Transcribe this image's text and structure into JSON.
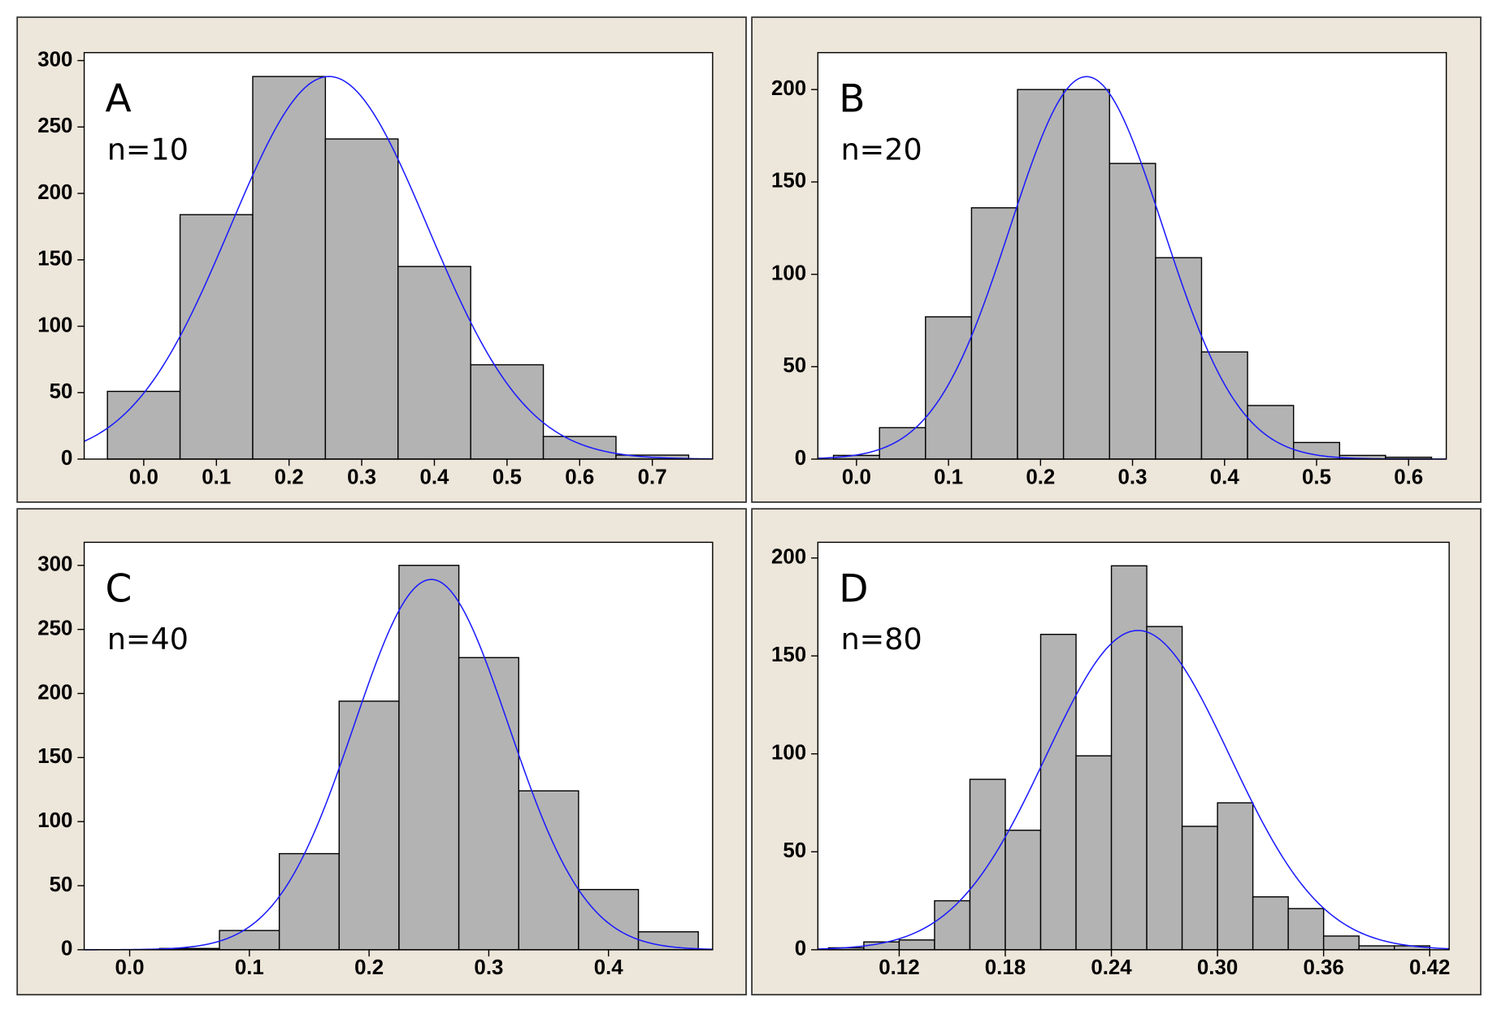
{
  "chart_data": [
    {
      "type": "histogram",
      "annotations": [
        "A",
        "n=10"
      ],
      "bins": [
        -0.05,
        0.05,
        0.15,
        0.25,
        0.35,
        0.45,
        0.55,
        0.65,
        0.75
      ],
      "counts": [
        51,
        184,
        288,
        241,
        145,
        71,
        17,
        3
      ],
      "color": "#b3b3b3",
      "fit": {
        "mean": 0.255,
        "sd": 0.136,
        "peak": 288,
        "color": "#1a1aff"
      },
      "xlim": [
        -0.082,
        0.783
      ],
      "ylim": [
        0,
        306
      ],
      "xticks": [
        {
          "value": 0,
          "label": "0.0"
        },
        0.1,
        0.2,
        0.3,
        0.4,
        0.5,
        0.6,
        0.7
      ],
      "yticks": [
        0,
        50,
        100,
        150,
        200,
        250,
        300
      ]
    },
    {
      "type": "histogram",
      "annotations": [
        "B",
        "n=20"
      ],
      "bins": [
        -0.025,
        0.025,
        0.075,
        0.125,
        0.175,
        0.225,
        0.275,
        0.325,
        0.375,
        0.425,
        0.475,
        0.525,
        0.575,
        0.625
      ],
      "counts": [
        2,
        17,
        77,
        136,
        200,
        200,
        160,
        109,
        58,
        29,
        9,
        2,
        1
      ],
      "color": "#b3b3b3",
      "fit": {
        "mean": 0.25,
        "sd": 0.083,
        "peak": 207,
        "color": "#1a1aff"
      },
      "xlim": [
        -0.042,
        0.641
      ],
      "ylim": [
        0,
        220
      ],
      "xticks": [
        {
          "value": 0,
          "label": "0.0"
        },
        0.1,
        0.2,
        0.3,
        0.4,
        0.5,
        0.6
      ],
      "yticks": [
        0,
        50,
        100,
        150,
        200
      ]
    },
    {
      "type": "histogram",
      "annotations": [
        "C",
        "n=40"
      ],
      "bins": [
        0.025,
        0.075,
        0.125,
        0.175,
        0.225,
        0.275,
        0.325,
        0.375,
        0.425,
        0.475
      ],
      "counts": [
        1,
        15,
        75,
        194,
        300,
        228,
        124,
        47,
        14
      ],
      "color": "#b3b3b3",
      "fit": {
        "mean": 0.252,
        "sd": 0.0645,
        "peak": 289,
        "color": "#1a1aff"
      },
      "xlim": [
        -0.038,
        0.487
      ],
      "ylim": [
        0,
        318
      ],
      "xticks": [
        {
          "value": 0,
          "label": "0.0"
        },
        0.1,
        0.2,
        0.3,
        0.4
      ],
      "yticks": [
        0,
        50,
        100,
        150,
        200,
        250,
        300
      ]
    },
    {
      "type": "histogram",
      "annotations": [
        "D",
        "n=80"
      ],
      "bins": [
        0.08,
        0.1,
        0.12,
        0.14,
        0.16,
        0.18,
        0.2,
        0.22,
        0.24,
        0.26,
        0.28,
        0.3,
        0.32,
        0.34,
        0.36,
        0.38,
        0.4,
        0.42
      ],
      "counts": [
        1,
        4,
        5,
        25,
        87,
        61,
        161,
        99,
        196,
        165,
        63,
        75,
        27,
        21,
        7,
        2,
        2
      ],
      "color": "#b3b3b3",
      "fit": {
        "mean": 0.255,
        "sd": 0.052,
        "peak": 163,
        "color": "#1a1aff"
      },
      "xlim": [
        0.074,
        0.431
      ],
      "ylim": [
        0,
        208
      ],
      "xticks": [
        0.12,
        0.18,
        0.24,
        {
          "value": 0.3,
          "label": "0.30"
        },
        0.36,
        0.42
      ],
      "yticks": [
        0,
        50,
        100,
        150,
        200
      ]
    }
  ]
}
